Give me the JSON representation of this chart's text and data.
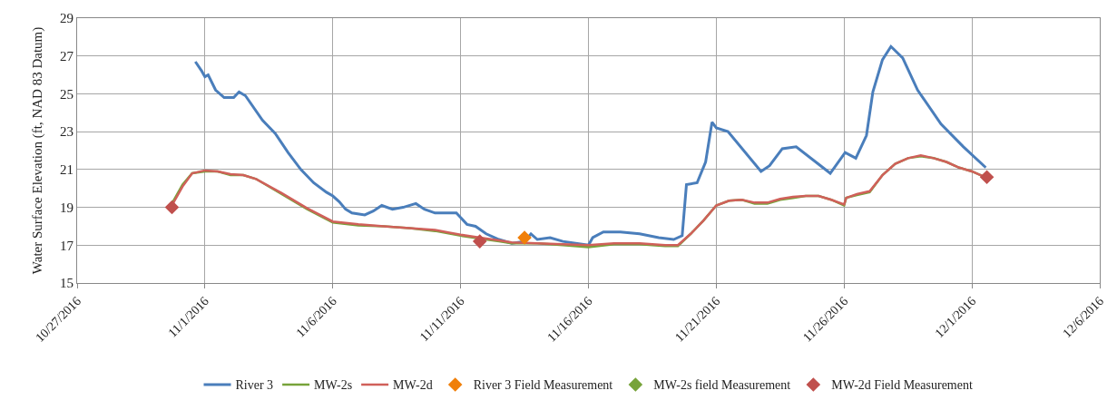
{
  "chart_data": {
    "type": "line",
    "ylabel": "Water Surface Elevation (ft, NAD 83 Datum)",
    "xlim": [
      "2016-10-27",
      "2016-12-06"
    ],
    "xticks": [
      {
        "value": "2016-10-27",
        "label": "10/27/2016"
      },
      {
        "value": "2016-11-01",
        "label": "11/1/2016"
      },
      {
        "value": "2016-11-06",
        "label": "11/6/2016"
      },
      {
        "value": "2016-11-11",
        "label": "11/11/2016"
      },
      {
        "value": "2016-11-16",
        "label": "11/16/2016"
      },
      {
        "value": "2016-11-21",
        "label": "11/21/2016"
      },
      {
        "value": "2016-11-26",
        "label": "11/26/2016"
      },
      {
        "value": "2016-12-01",
        "label": "12/1/2016"
      },
      {
        "value": "2016-12-06",
        "label": "12/6/2016"
      }
    ],
    "ylim": [
      15,
      29
    ],
    "yticks": [
      15,
      17,
      19,
      21,
      23,
      25,
      27,
      29
    ],
    "grid": true,
    "legend": "bottom",
    "series": [
      {
        "name": "River 3",
        "color": "#4a7ebb",
        "marker": "none",
        "line_style": "solid",
        "x": [
          "2016-10-31T15:00",
          "2016-10-31T21:00",
          "2016-11-01T00:00",
          "2016-11-01T03:00",
          "2016-11-01T10:00",
          "2016-11-01T18:00",
          "2016-11-02T03:00",
          "2016-11-02T08:00",
          "2016-11-02T14:00",
          "2016-11-03T06:00",
          "2016-11-03T18:00",
          "2016-11-04T06:00",
          "2016-11-04T18:00",
          "2016-11-05T06:00",
          "2016-11-05T18:00",
          "2016-11-06T00:00",
          "2016-11-06T06:00",
          "2016-11-06T12:00",
          "2016-11-06T18:00",
          "2016-11-07T06:00",
          "2016-11-07T14:00",
          "2016-11-07T22:00",
          "2016-11-08T08:00",
          "2016-11-08T18:00",
          "2016-11-09T06:00",
          "2016-11-09T14:00",
          "2016-11-10T00:00",
          "2016-11-10T12:00",
          "2016-11-10T20:00",
          "2016-11-11T06:00",
          "2016-11-11T14:00",
          "2016-11-12T00:00",
          "2016-11-12T12:00",
          "2016-11-13T00:00",
          "2016-11-13T12:00",
          "2016-11-13T18:00",
          "2016-11-14T00:00",
          "2016-11-14T12:00",
          "2016-11-15T00:00",
          "2016-11-15T12:00",
          "2016-11-16T00:00",
          "2016-11-16T04:00",
          "2016-11-16T14:00",
          "2016-11-17T06:00",
          "2016-11-18T00:00",
          "2016-11-18T18:00",
          "2016-11-19T08:00",
          "2016-11-19T16:00",
          "2016-11-19T20:00",
          "2016-11-20T06:00",
          "2016-11-20T14:00",
          "2016-11-20T20:00",
          "2016-11-21T00:00",
          "2016-11-21T11:00",
          "2016-11-22T18:00",
          "2016-11-23T02:00",
          "2016-11-23T14:00",
          "2016-11-24T03:00",
          "2016-11-25T11:00",
          "2016-11-26T01:00",
          "2016-11-26T11:00",
          "2016-11-26T21:00",
          "2016-11-27T03:00",
          "2016-11-27T12:00",
          "2016-11-27T20:00",
          "2016-11-28T07:00",
          "2016-11-28T21:00",
          "2016-11-29T19:00",
          "2016-11-30T16:00",
          "2016-12-01T13:00"
        ],
        "values": [
          26.7,
          26.2,
          25.9,
          26.0,
          25.2,
          24.8,
          24.8,
          25.1,
          24.9,
          23.6,
          22.9,
          21.9,
          21.0,
          20.3,
          19.8,
          19.6,
          19.3,
          18.9,
          18.7,
          18.6,
          18.8,
          19.1,
          18.9,
          19.0,
          19.2,
          18.9,
          18.7,
          18.7,
          18.7,
          18.1,
          18.0,
          17.6,
          17.3,
          17.1,
          17.2,
          17.6,
          17.3,
          17.4,
          17.2,
          17.1,
          17.0,
          17.4,
          17.7,
          17.7,
          17.6,
          17.4,
          17.3,
          17.5,
          20.2,
          20.3,
          21.4,
          23.5,
          23.2,
          23.0,
          20.9,
          21.2,
          22.1,
          22.2,
          20.8,
          21.9,
          21.6,
          22.8,
          25.1,
          26.8,
          27.5,
          26.9,
          25.2,
          23.4,
          22.2,
          21.1
        ]
      },
      {
        "name": "MW-2s",
        "color": "#77a33a",
        "marker": "none",
        "line_style": "solid",
        "x": [
          "2016-10-30T17:00",
          "2016-10-31T03:00",
          "2016-10-31T12:00",
          "2016-11-01T00:00",
          "2016-11-01T12:00",
          "2016-11-02T00:00",
          "2016-11-02T12:00",
          "2016-11-03T00:00",
          "2016-11-04T00:00",
          "2016-11-05T00:00",
          "2016-11-06T00:00",
          "2016-11-07T00:00",
          "2016-11-08T00:00",
          "2016-11-09T00:00",
          "2016-11-10T00:00",
          "2016-11-11T00:00",
          "2016-11-12T00:00",
          "2016-11-12T12:00",
          "2016-11-13T00:00",
          "2016-11-14T00:00",
          "2016-11-15T00:00",
          "2016-11-16T00:00",
          "2016-11-17T00:00",
          "2016-11-18T00:00",
          "2016-11-19T00:00",
          "2016-11-19T12:00",
          "2016-11-20T00:00",
          "2016-11-20T12:00",
          "2016-11-21T00:00",
          "2016-11-21T12:00",
          "2016-11-22T00:00",
          "2016-11-22T12:00",
          "2016-11-23T00:00",
          "2016-11-23T12:00",
          "2016-11-24T00:00",
          "2016-11-24T12:00",
          "2016-11-25T00:00",
          "2016-11-25T12:00",
          "2016-11-26T00:00",
          "2016-11-26T02:00",
          "2016-11-26T12:00",
          "2016-11-27T00:00",
          "2016-11-27T12:00",
          "2016-11-28T00:00",
          "2016-11-28T12:00",
          "2016-11-29T00:00",
          "2016-11-29T12:00",
          "2016-11-30T00:00",
          "2016-11-30T12:00",
          "2016-12-01T00:00",
          "2016-12-01T12:00"
        ],
        "values": [
          19.2,
          20.2,
          20.8,
          20.9,
          20.9,
          20.7,
          20.7,
          20.5,
          19.7,
          18.9,
          18.2,
          18.05,
          18.0,
          17.9,
          17.75,
          17.5,
          17.3,
          17.2,
          17.1,
          17.1,
          17.0,
          16.9,
          17.05,
          17.05,
          16.95,
          16.95,
          17.6,
          18.3,
          19.1,
          19.35,
          19.4,
          19.2,
          19.2,
          19.4,
          19.5,
          19.6,
          19.6,
          19.4,
          19.1,
          19.5,
          19.65,
          19.8,
          20.7,
          21.3,
          21.6,
          21.7,
          21.6,
          21.4,
          21.1,
          20.9,
          20.6
        ]
      },
      {
        "name": "MW-2d",
        "color": "#d0605a",
        "marker": "none",
        "line_style": "solid",
        "x": [
          "2016-10-30T17:00",
          "2016-10-31T03:00",
          "2016-10-31T12:00",
          "2016-11-01T00:00",
          "2016-11-01T12:00",
          "2016-11-02T00:00",
          "2016-11-02T12:00",
          "2016-11-03T00:00",
          "2016-11-04T00:00",
          "2016-11-05T00:00",
          "2016-11-06T00:00",
          "2016-11-07T00:00",
          "2016-11-08T00:00",
          "2016-11-09T00:00",
          "2016-11-10T00:00",
          "2016-11-11T00:00",
          "2016-11-12T00:00",
          "2016-11-12T12:00",
          "2016-11-13T00:00",
          "2016-11-14T00:00",
          "2016-11-15T00:00",
          "2016-11-16T00:00",
          "2016-11-17T00:00",
          "2016-11-18T00:00",
          "2016-11-19T00:00",
          "2016-11-19T12:00",
          "2016-11-20T00:00",
          "2016-11-20T12:00",
          "2016-11-21T00:00",
          "2016-11-21T12:00",
          "2016-11-22T00:00",
          "2016-11-22T12:00",
          "2016-11-23T00:00",
          "2016-11-23T12:00",
          "2016-11-24T00:00",
          "2016-11-24T12:00",
          "2016-11-25T00:00",
          "2016-11-25T12:00",
          "2016-11-26T00:00",
          "2016-11-26T02:00",
          "2016-11-26T12:00",
          "2016-11-27T00:00",
          "2016-11-27T12:00",
          "2016-11-28T00:00",
          "2016-11-28T12:00",
          "2016-11-29T00:00",
          "2016-11-29T12:00",
          "2016-11-30T00:00",
          "2016-11-30T12:00",
          "2016-12-01T00:00",
          "2016-12-01T12:00"
        ],
        "values": [
          19.1,
          20.1,
          20.8,
          20.95,
          20.9,
          20.75,
          20.7,
          20.5,
          19.75,
          18.95,
          18.25,
          18.1,
          18.0,
          17.9,
          17.8,
          17.55,
          17.35,
          17.25,
          17.15,
          17.1,
          17.05,
          17.0,
          17.1,
          17.1,
          17.0,
          17.0,
          17.6,
          18.3,
          19.1,
          19.35,
          19.4,
          19.25,
          19.25,
          19.45,
          19.55,
          19.6,
          19.6,
          19.4,
          19.15,
          19.5,
          19.7,
          19.85,
          20.7,
          21.3,
          21.6,
          21.75,
          21.6,
          21.4,
          21.1,
          20.9,
          20.6
        ]
      },
      {
        "name": "River 3 Field Measurement",
        "type": "scatter",
        "color": "#f07f09",
        "marker": "diamond",
        "x": [
          "2016-11-13T12:00"
        ],
        "values": [
          17.4
        ]
      },
      {
        "name": "MW-2s field Measurement",
        "type": "scatter",
        "color": "#77a33a",
        "marker": "diamond",
        "values": [
          null,
          null,
          null
        ]
      },
      {
        "name": "MW-2d Field Measurement",
        "type": "scatter",
        "color": "#c0504d",
        "marker": "diamond",
        "x": [
          "2016-10-30T17:00",
          "2016-11-11T18:00",
          "2016-12-01T14:00"
        ],
        "values": [
          19.0,
          17.2,
          20.6
        ]
      }
    ]
  }
}
